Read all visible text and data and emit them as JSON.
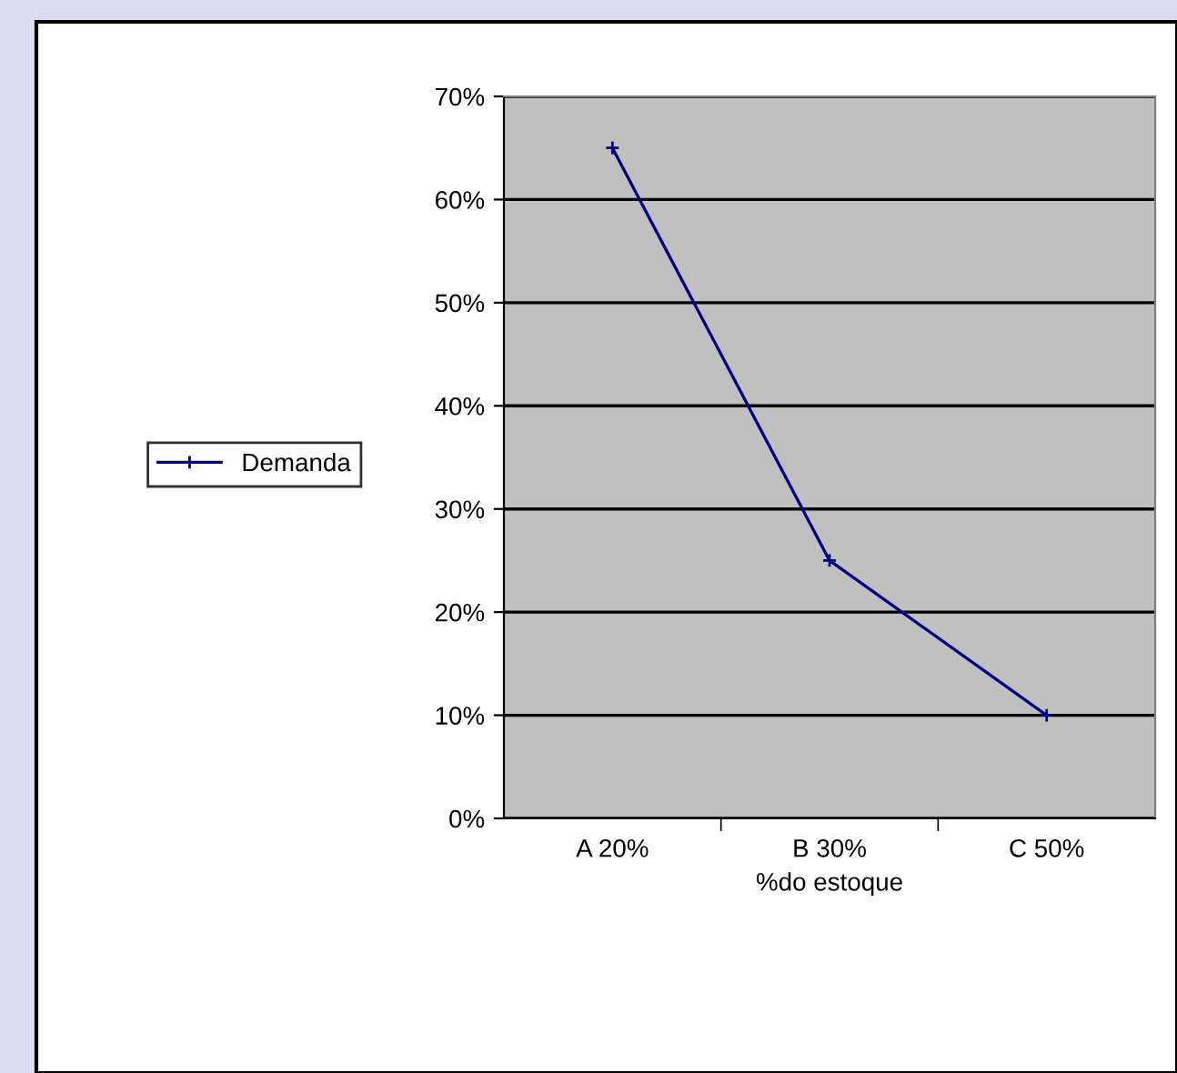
{
  "chart_data": {
    "type": "line",
    "xlabel": "%do estoque",
    "categories": [
      "A 20%",
      "B 30%",
      "C 50%"
    ],
    "series": [
      {
        "name": "Demanda",
        "color": "#000080",
        "values": [
          65,
          25,
          10
        ]
      }
    ],
    "ylim": [
      0,
      70
    ],
    "yticks": [
      {
        "value": 0,
        "label": "0%"
      },
      {
        "value": 10,
        "label": "10%"
      },
      {
        "value": 20,
        "label": "20%"
      },
      {
        "value": 30,
        "label": "30%"
      },
      {
        "value": 40,
        "label": "40%"
      },
      {
        "value": 50,
        "label": "50%"
      },
      {
        "value": 60,
        "label": "60%"
      },
      {
        "value": 70,
        "label": "70%"
      }
    ],
    "grid": "y",
    "legend": "left",
    "marker": "cross",
    "line_style": "solid"
  }
}
